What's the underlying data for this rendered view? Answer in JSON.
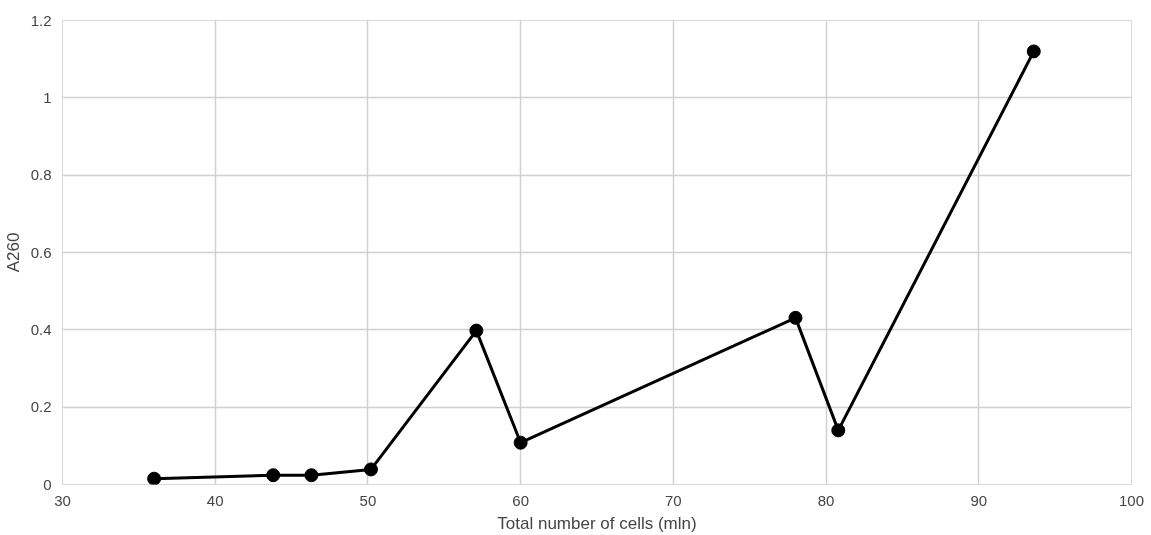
{
  "chart_data": {
    "type": "line",
    "xlabel": "Total number of cells (mln)",
    "ylabel": "A260",
    "x": [
      36.0,
      43.8,
      46.3,
      50.2,
      57.1,
      60.0,
      78.0,
      80.8,
      93.6
    ],
    "series": [
      {
        "color": "#000000",
        "values": [
          0.015,
          0.024,
          0.024,
          0.039,
          0.398,
          0.108,
          0.431,
          0.14,
          1.12
        ]
      }
    ],
    "xlim": [
      30,
      100
    ],
    "xticks": [
      30,
      40,
      50,
      60,
      70,
      80,
      90,
      100
    ],
    "ylim": [
      0,
      1.2
    ],
    "yticks": [
      0,
      {
        "value": 0.2,
        "label": "0.2"
      },
      {
        "value": 0.4,
        "label": "0.4"
      },
      {
        "value": 0.6,
        "label": "0.6"
      },
      {
        "value": 0.8,
        "label": "0.8"
      },
      1,
      {
        "value": 1.2,
        "label": "1.2"
      }
    ],
    "grid": true,
    "marker": "circle",
    "line_style": "solid"
  }
}
